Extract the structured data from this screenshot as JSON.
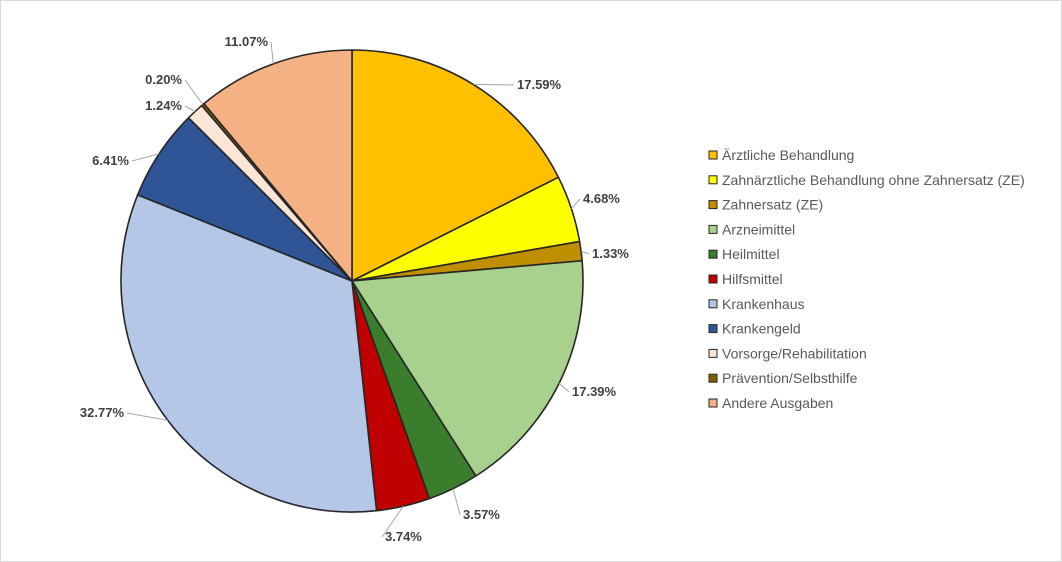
{
  "chart_data": {
    "type": "pie",
    "legend_position": "right",
    "slices": [
      {
        "name": "Ärztliche Behandlung",
        "value": 17.59,
        "label": "17.59%",
        "color": "#FFC000"
      },
      {
        "name": "Zahnärztliche Behandlung ohne Zahnersatz (ZE)",
        "value": 4.68,
        "label": "4.68%",
        "color": "#FFFF00"
      },
      {
        "name": "Zahnersatz (ZE)",
        "value": 1.33,
        "label": "1.33%",
        "color": "#BF8F00"
      },
      {
        "name": "Arzneimittel",
        "value": 17.39,
        "label": "17.39%",
        "color": "#A9D18E"
      },
      {
        "name": "Heilmittel",
        "value": 3.57,
        "label": "3.57%",
        "color": "#3A7D2C"
      },
      {
        "name": "Hilfsmittel",
        "value": 3.74,
        "label": "3.74%",
        "color": "#C00000"
      },
      {
        "name": "Krankenhaus",
        "value": 32.77,
        "label": "32.77%",
        "color": "#B4C7E7"
      },
      {
        "name": "Krankengeld",
        "value": 6.41,
        "label": "6.41%",
        "color": "#2F5597"
      },
      {
        "name": "Vorsorge/Rehabilitation",
        "value": 1.24,
        "label": "1.24%",
        "color": "#FBE5D6"
      },
      {
        "name": "Prävention/Selbsthilfe",
        "value": 0.2,
        "label": "0.20%",
        "color": "#806000"
      },
      {
        "name": "Andere Ausgaben",
        "value": 11.07,
        "label": "11.07%",
        "color": "#F4B183"
      }
    ]
  }
}
